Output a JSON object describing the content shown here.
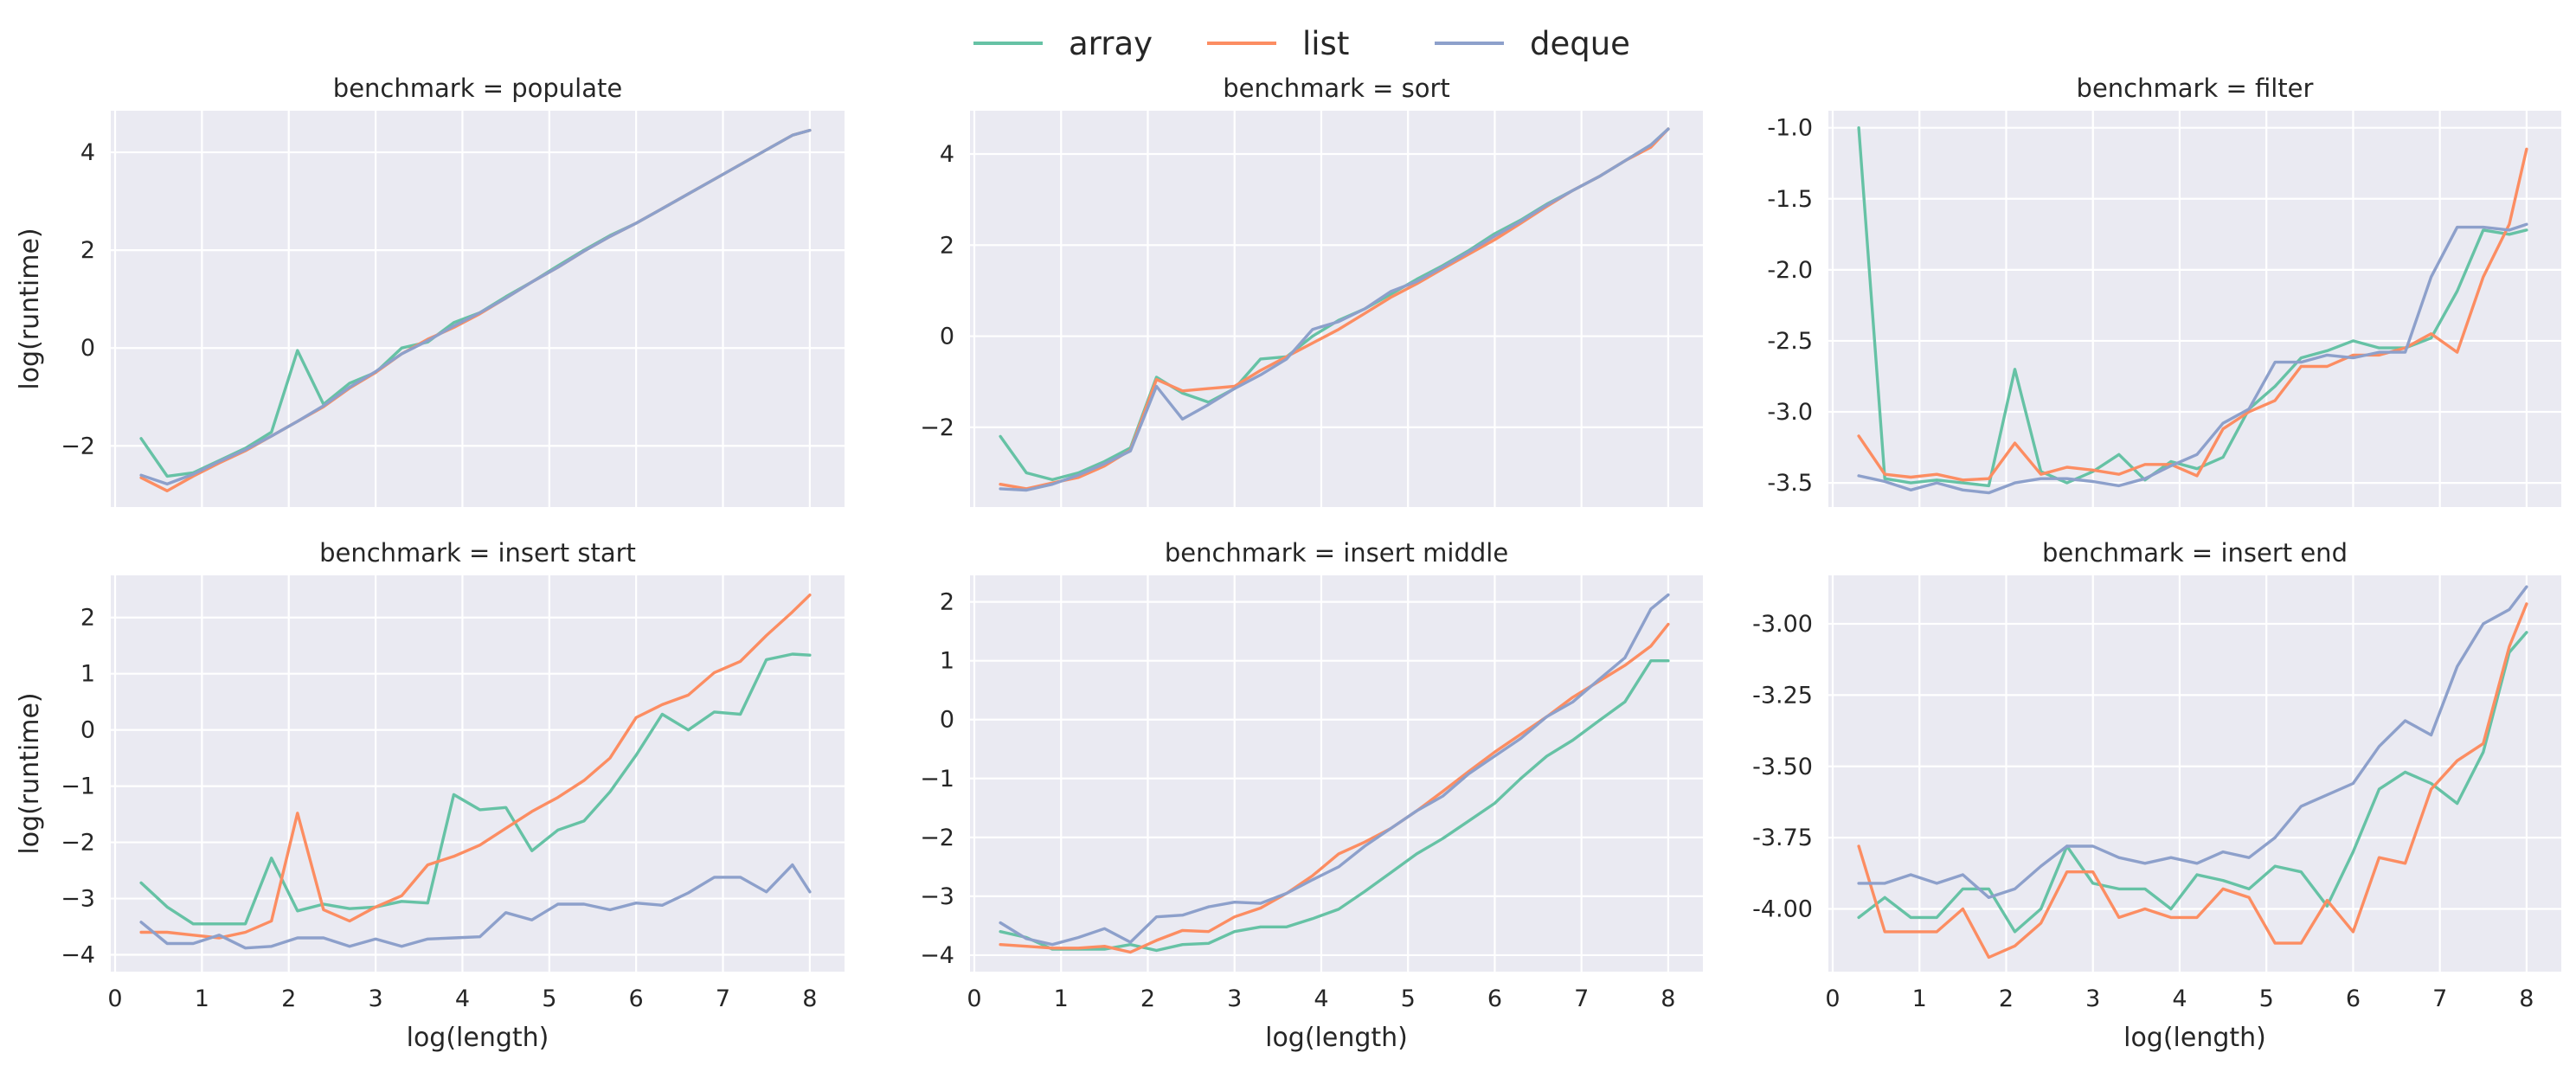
{
  "figure": {
    "legend": {
      "position": "top-center",
      "entries": [
        {
          "name": "array",
          "color": "#66c2a5"
        },
        {
          "name": "list",
          "color": "#fc8d62"
        },
        {
          "name": "deque",
          "color": "#8da0cb"
        }
      ]
    },
    "xlabel": "log(length)",
    "ylabel": "log(runtime)",
    "background": "#eaeaf2",
    "grid": true
  },
  "chart_data": [
    {
      "type": "line",
      "title": "benchmark = populate",
      "xlabel": "",
      "ylabel": "log(runtime)",
      "xlim": [
        -0.05,
        8.4
      ],
      "ylim": [
        -3.25,
        4.85
      ],
      "yticks": [
        -2,
        0,
        2,
        4
      ],
      "xticks": [],
      "x": [
        0.3,
        0.6,
        0.9,
        1.2,
        1.5,
        1.8,
        2.1,
        2.4,
        2.7,
        3.0,
        3.3,
        3.6,
        3.9,
        4.2,
        4.5,
        4.8,
        5.1,
        5.4,
        5.7,
        6.0,
        6.3,
        6.6,
        6.9,
        7.2,
        7.5,
        7.8,
        8.0
      ],
      "series": [
        {
          "name": "array",
          "values": [
            -1.85,
            -2.62,
            -2.55,
            -2.3,
            -2.05,
            -1.72,
            -0.05,
            -1.15,
            -0.72,
            -0.5,
            0.0,
            0.12,
            0.52,
            0.72,
            1.05,
            1.35,
            1.68,
            2.0,
            2.3,
            2.55,
            2.85,
            3.15,
            3.45,
            3.75,
            4.05,
            4.35,
            4.45
          ]
        },
        {
          "name": "list",
          "values": [
            -2.65,
            -2.92,
            -2.62,
            -2.35,
            -2.1,
            -1.8,
            -1.5,
            -1.2,
            -0.82,
            -0.5,
            -0.12,
            0.18,
            0.42,
            0.7,
            1.02,
            1.35,
            1.65,
            1.98,
            2.28,
            2.55,
            2.85,
            3.15,
            3.45,
            3.75,
            4.05,
            4.35,
            4.45
          ]
        },
        {
          "name": "deque",
          "values": [
            -2.6,
            -2.78,
            -2.58,
            -2.32,
            -2.08,
            -1.8,
            -1.5,
            -1.18,
            -0.8,
            -0.48,
            -0.12,
            0.15,
            0.45,
            0.72,
            1.02,
            1.35,
            1.65,
            1.98,
            2.28,
            2.55,
            2.85,
            3.15,
            3.45,
            3.75,
            4.05,
            4.35,
            4.45
          ]
        }
      ]
    },
    {
      "type": "line",
      "title": "benchmark = sort",
      "xlabel": "",
      "ylabel": "",
      "xlim": [
        -0.05,
        8.4
      ],
      "ylim": [
        -3.75,
        4.95
      ],
      "yticks": [
        -2,
        0,
        2,
        4
      ],
      "xticks": [],
      "x": [
        0.3,
        0.6,
        0.9,
        1.2,
        1.5,
        1.8,
        2.1,
        2.4,
        2.7,
        3.0,
        3.3,
        3.6,
        3.9,
        4.2,
        4.5,
        4.8,
        5.1,
        5.4,
        5.7,
        6.0,
        6.3,
        6.6,
        6.9,
        7.2,
        7.5,
        7.8,
        8.0
      ],
      "series": [
        {
          "name": "array",
          "values": [
            -2.2,
            -3.0,
            -3.15,
            -3.0,
            -2.75,
            -2.45,
            -0.9,
            -1.25,
            -1.45,
            -1.15,
            -0.5,
            -0.45,
            0.0,
            0.35,
            0.6,
            0.92,
            1.25,
            1.55,
            1.88,
            2.25,
            2.55,
            2.9,
            3.2,
            3.5,
            3.85,
            4.2,
            4.55
          ]
        },
        {
          "name": "list",
          "values": [
            -3.25,
            -3.35,
            -3.22,
            -3.1,
            -2.85,
            -2.5,
            -0.95,
            -1.2,
            -1.15,
            -1.1,
            -0.75,
            -0.45,
            -0.15,
            0.15,
            0.5,
            0.85,
            1.15,
            1.48,
            1.8,
            2.12,
            2.48,
            2.85,
            3.2,
            3.5,
            3.85,
            4.15,
            4.55
          ]
        },
        {
          "name": "deque",
          "values": [
            -3.35,
            -3.38,
            -3.25,
            -3.05,
            -2.8,
            -2.52,
            -1.1,
            -1.82,
            -1.5,
            -1.15,
            -0.85,
            -0.5,
            0.15,
            0.32,
            0.6,
            0.98,
            1.2,
            1.52,
            1.85,
            2.2,
            2.52,
            2.88,
            3.2,
            3.5,
            3.85,
            4.2,
            4.55
          ]
        }
      ]
    },
    {
      "type": "line",
      "title": "benchmark = filter",
      "xlabel": "",
      "ylabel": "",
      "xlim": [
        -0.05,
        8.4
      ],
      "ylim": [
        -3.67,
        -0.88
      ],
      "yticks": [
        -3.5,
        -3.0,
        -2.5,
        -2.0,
        -1.5,
        -1.0
      ],
      "ytick_labels": [
        "-3.5",
        "-3.0",
        "-2.5",
        "-2.0",
        "-1.5",
        "-1.0"
      ],
      "xticks": [],
      "x": [
        0.3,
        0.6,
        0.9,
        1.2,
        1.5,
        1.8,
        2.1,
        2.4,
        2.7,
        3.0,
        3.3,
        3.6,
        3.9,
        4.2,
        4.5,
        4.8,
        5.1,
        5.4,
        5.7,
        6.0,
        6.3,
        6.6,
        6.9,
        7.2,
        7.5,
        7.8,
        8.0
      ],
      "series": [
        {
          "name": "array",
          "values": [
            -1.0,
            -3.47,
            -3.5,
            -3.48,
            -3.5,
            -3.52,
            -2.7,
            -3.42,
            -3.5,
            -3.42,
            -3.3,
            -3.48,
            -3.35,
            -3.4,
            -3.32,
            -2.98,
            -2.82,
            -2.62,
            -2.57,
            -2.5,
            -2.55,
            -2.55,
            -2.48,
            -2.15,
            -1.72,
            -1.75,
            -1.72
          ]
        },
        {
          "name": "list",
          "values": [
            -3.17,
            -3.44,
            -3.46,
            -3.44,
            -3.48,
            -3.47,
            -3.22,
            -3.44,
            -3.39,
            -3.41,
            -3.44,
            -3.37,
            -3.37,
            -3.45,
            -3.12,
            -3.0,
            -2.92,
            -2.68,
            -2.68,
            -2.6,
            -2.6,
            -2.55,
            -2.45,
            -2.58,
            -2.05,
            -1.68,
            -1.15
          ]
        },
        {
          "name": "deque",
          "values": [
            -3.45,
            -3.49,
            -3.55,
            -3.5,
            -3.55,
            -3.57,
            -3.5,
            -3.47,
            -3.47,
            -3.49,
            -3.52,
            -3.47,
            -3.38,
            -3.3,
            -3.08,
            -2.98,
            -2.65,
            -2.65,
            -2.6,
            -2.62,
            -2.58,
            -2.58,
            -2.05,
            -1.7,
            -1.7,
            -1.72,
            -1.68
          ]
        }
      ]
    },
    {
      "type": "line",
      "title": "benchmark = insert start",
      "xlabel": "log(length)",
      "ylabel": "log(runtime)",
      "xlim": [
        -0.05,
        8.4
      ],
      "ylim": [
        -4.3,
        2.75
      ],
      "yticks": [
        -4,
        -3,
        -2,
        -1,
        0,
        1,
        2
      ],
      "xticks": [
        0,
        1,
        2,
        3,
        4,
        5,
        6,
        7,
        8
      ],
      "x": [
        0.3,
        0.6,
        0.9,
        1.2,
        1.5,
        1.8,
        2.1,
        2.4,
        2.7,
        3.0,
        3.3,
        3.6,
        3.9,
        4.2,
        4.5,
        4.8,
        5.1,
        5.4,
        5.7,
        6.0,
        6.3,
        6.6,
        6.9,
        7.2,
        7.5,
        7.8,
        8.0
      ],
      "series": [
        {
          "name": "array",
          "values": [
            -2.72,
            -3.15,
            -3.45,
            -3.45,
            -3.45,
            -2.28,
            -3.22,
            -3.1,
            -3.18,
            -3.15,
            -3.05,
            -3.08,
            -1.15,
            -1.42,
            -1.38,
            -2.15,
            -1.78,
            -1.62,
            -1.1,
            -0.45,
            0.28,
            0.0,
            0.32,
            0.28,
            1.25,
            1.35,
            1.33
          ]
        },
        {
          "name": "list",
          "values": [
            -3.6,
            -3.6,
            -3.65,
            -3.7,
            -3.6,
            -3.4,
            -1.48,
            -3.2,
            -3.4,
            -3.15,
            -2.95,
            -2.4,
            -2.25,
            -2.05,
            -1.75,
            -1.45,
            -1.2,
            -0.9,
            -0.5,
            0.22,
            0.45,
            0.62,
            1.02,
            1.22,
            1.68,
            2.1,
            2.4
          ]
        },
        {
          "name": "deque",
          "values": [
            -3.42,
            -3.8,
            -3.8,
            -3.65,
            -3.88,
            -3.85,
            -3.7,
            -3.7,
            -3.85,
            -3.72,
            -3.85,
            -3.72,
            -3.7,
            -3.68,
            -3.25,
            -3.38,
            -3.1,
            -3.1,
            -3.2,
            -3.08,
            -3.12,
            -2.9,
            -2.62,
            -2.62,
            -2.88,
            -2.4,
            -2.88
          ]
        }
      ]
    },
    {
      "type": "line",
      "title": "benchmark = insert middle",
      "xlabel": "log(length)",
      "ylabel": "",
      "xlim": [
        -0.05,
        8.4
      ],
      "ylim": [
        -4.28,
        2.45
      ],
      "yticks": [
        -4,
        -3,
        -2,
        -1,
        0,
        1,
        2
      ],
      "xticks": [
        0,
        1,
        2,
        3,
        4,
        5,
        6,
        7,
        8
      ],
      "x": [
        0.3,
        0.6,
        0.9,
        1.2,
        1.5,
        1.8,
        2.1,
        2.4,
        2.7,
        3.0,
        3.3,
        3.6,
        3.9,
        4.2,
        4.5,
        4.8,
        5.1,
        5.4,
        5.7,
        6.0,
        6.3,
        6.6,
        6.9,
        7.2,
        7.5,
        7.8,
        8.0
      ],
      "series": [
        {
          "name": "array",
          "values": [
            -3.6,
            -3.7,
            -3.9,
            -3.9,
            -3.9,
            -3.82,
            -3.92,
            -3.82,
            -3.8,
            -3.6,
            -3.52,
            -3.52,
            -3.38,
            -3.22,
            -2.92,
            -2.6,
            -2.28,
            -2.02,
            -1.72,
            -1.42,
            -1.0,
            -0.62,
            -0.35,
            -0.02,
            0.3,
            1.0,
            1.0
          ]
        },
        {
          "name": "list",
          "values": [
            -3.82,
            -3.85,
            -3.88,
            -3.88,
            -3.85,
            -3.95,
            -3.75,
            -3.58,
            -3.6,
            -3.35,
            -3.2,
            -2.95,
            -2.65,
            -2.28,
            -2.08,
            -1.85,
            -1.55,
            -1.22,
            -0.88,
            -0.55,
            -0.25,
            0.05,
            0.38,
            0.65,
            0.92,
            1.25,
            1.62
          ]
        },
        {
          "name": "deque",
          "values": [
            -3.45,
            -3.72,
            -3.82,
            -3.7,
            -3.55,
            -3.78,
            -3.35,
            -3.32,
            -3.18,
            -3.1,
            -3.12,
            -2.95,
            -2.72,
            -2.5,
            -2.15,
            -1.85,
            -1.55,
            -1.3,
            -0.92,
            -0.62,
            -0.32,
            0.05,
            0.3,
            0.68,
            1.05,
            1.88,
            2.12
          ]
        }
      ]
    },
    {
      "type": "line",
      "title": "benchmark = insert end",
      "xlabel": "log(length)",
      "ylabel": "",
      "xlim": [
        -0.05,
        8.4
      ],
      "ylim": [
        -4.22,
        -2.83
      ],
      "yticks": [
        -4.0,
        -3.75,
        -3.5,
        -3.25,
        -3.0
      ],
      "ytick_labels": [
        "-4.00",
        "-3.75",
        "-3.50",
        "-3.25",
        "-3.00"
      ],
      "xticks": [
        0,
        1,
        2,
        3,
        4,
        5,
        6,
        7,
        8
      ],
      "x": [
        0.3,
        0.6,
        0.9,
        1.2,
        1.5,
        1.8,
        2.1,
        2.4,
        2.7,
        3.0,
        3.3,
        3.6,
        3.9,
        4.2,
        4.5,
        4.8,
        5.1,
        5.4,
        5.7,
        6.0,
        6.3,
        6.6,
        6.9,
        7.2,
        7.5,
        7.8,
        8.0
      ],
      "series": [
        {
          "name": "array",
          "values": [
            -4.03,
            -3.96,
            -4.03,
            -4.03,
            -3.93,
            -3.93,
            -4.08,
            -4.0,
            -3.78,
            -3.91,
            -3.93,
            -3.93,
            -4.0,
            -3.88,
            -3.9,
            -3.93,
            -3.85,
            -3.87,
            -3.99,
            -3.8,
            -3.58,
            -3.52,
            -3.56,
            -3.63,
            -3.45,
            -3.1,
            -3.03
          ]
        },
        {
          "name": "list",
          "values": [
            -3.78,
            -4.08,
            -4.08,
            -4.08,
            -4.0,
            -4.17,
            -4.13,
            -4.05,
            -3.87,
            -3.87,
            -4.03,
            -4.0,
            -4.03,
            -4.03,
            -3.93,
            -3.96,
            -4.12,
            -4.12,
            -3.97,
            -4.08,
            -3.82,
            -3.84,
            -3.58,
            -3.48,
            -3.42,
            -3.08,
            -2.93
          ]
        },
        {
          "name": "deque",
          "values": [
            -3.91,
            -3.91,
            -3.88,
            -3.91,
            -3.88,
            -3.96,
            -3.93,
            -3.85,
            -3.78,
            -3.78,
            -3.82,
            -3.84,
            -3.82,
            -3.84,
            -3.8,
            -3.82,
            -3.75,
            -3.64,
            -3.6,
            -3.56,
            -3.43,
            -3.34,
            -3.39,
            -3.15,
            -3.0,
            -2.95,
            -2.87
          ]
        }
      ]
    }
  ]
}
